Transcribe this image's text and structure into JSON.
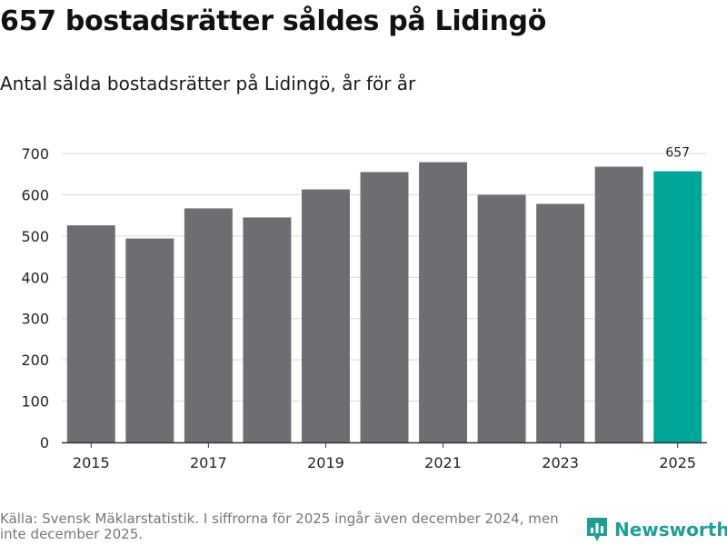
{
  "title": "657 bostadsrätter såldes på Lidingö",
  "subtitle": "Antal sålda bostadsrätter på Lidingö, år för år",
  "source": "Källa: Svensk Mäklarstatistik. I siffrorna för 2025 ingår även december 2024, men inte december 2025.",
  "brand": {
    "name": "Newsworthy",
    "icon": "newsworthy-logo-icon"
  },
  "colors": {
    "bar": "#6e6d72",
    "highlight": "#00a59a",
    "grid": "#d9d9d9",
    "axis": "#333333",
    "brand": "#1f9e96"
  },
  "chart_data": {
    "type": "bar",
    "title": "657 bostadsrätter såldes på Lidingö",
    "subtitle": "Antal sålda bostadsrätter på Lidingö, år för år",
    "xlabel": "",
    "ylabel": "",
    "categories": [
      "2015",
      "2016",
      "2017",
      "2018",
      "2019",
      "2020",
      "2021",
      "2022",
      "2023",
      "2024",
      "2025"
    ],
    "values": [
      526,
      494,
      567,
      545,
      613,
      655,
      679,
      600,
      578,
      668,
      657
    ],
    "x_tick_labels": [
      "2015",
      "2017",
      "2019",
      "2021",
      "2023",
      "2025"
    ],
    "y_ticks": [
      0,
      100,
      200,
      300,
      400,
      500,
      600,
      700
    ],
    "ylim": [
      0,
      700
    ],
    "grid": true,
    "highlight_index": 10,
    "data_labels": [
      {
        "category": "2025",
        "text": "657"
      }
    ]
  }
}
